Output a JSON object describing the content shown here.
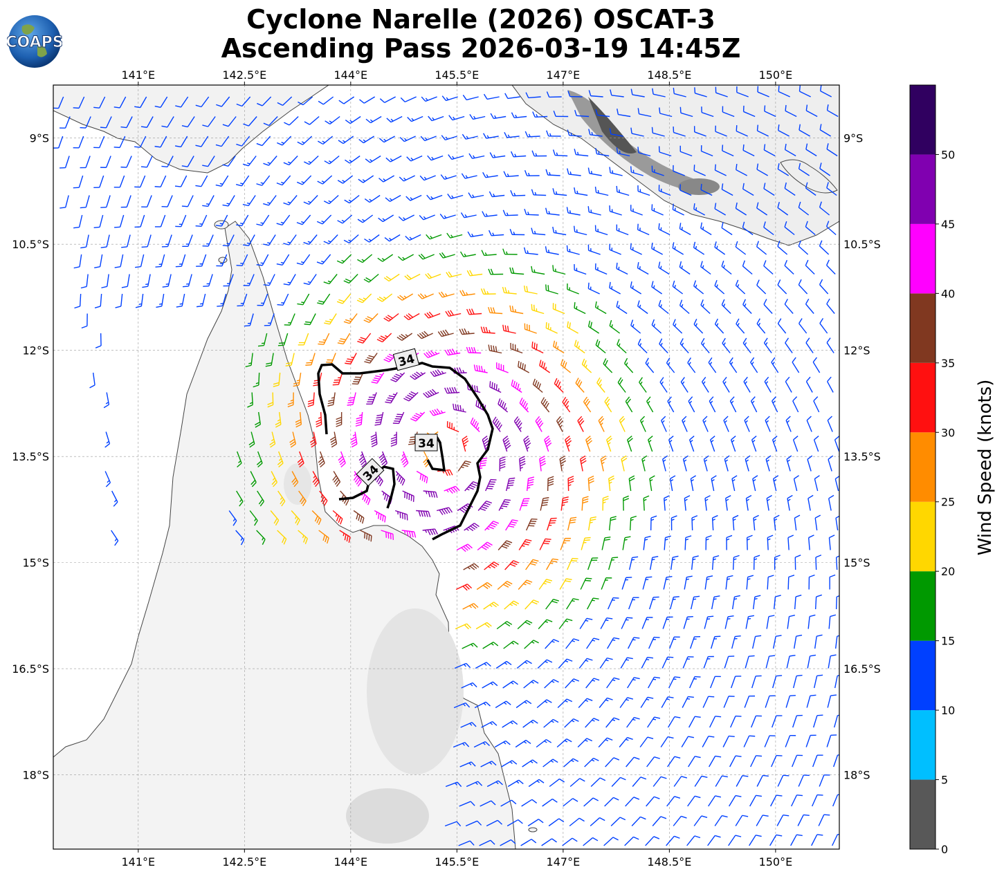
{
  "title_line1": "Cyclone Narelle (2026) OSCAT-3",
  "title_line2": "Ascending Pass 2026-03-19 14:45Z",
  "logo_text": "COAPS",
  "map": {
    "lon_range": [
      139.8,
      150.9
    ],
    "lat_range": [
      -19.05,
      -8.25
    ],
    "lon_ticks": [
      141,
      142.5,
      144,
      145.5,
      147,
      148.5,
      150
    ],
    "lon_tick_labels": [
      "141°E",
      "142.5°E",
      "144°E",
      "145.5°E",
      "147°E",
      "148.5°E",
      "150°E"
    ],
    "lat_ticks": [
      -9,
      -10.5,
      -12,
      -13.5,
      -15,
      -16.5,
      -18
    ],
    "lat_tick_labels": [
      "9°S",
      "10.5°S",
      "12°S",
      "13.5°S",
      "15°S",
      "16.5°S",
      "18°S"
    ],
    "center": {
      "lon": 145.3,
      "lat": -13.4
    },
    "contour_label": "34",
    "contour_labels": [
      "34",
      "34",
      "34"
    ]
  },
  "colorbar": {
    "label": "Wind Speed (knots)",
    "ticks": [
      "0",
      "5",
      "10",
      "15",
      "20",
      "25",
      "30",
      "35",
      "40",
      "45",
      "50"
    ],
    "colors": [
      "#585858",
      "#00bfff",
      "#0040ff",
      "#009900",
      "#ffd700",
      "#ff8c00",
      "#ff1010",
      "#803820",
      "#ff00ff",
      "#8000b0",
      "#300060"
    ],
    "max": 55
  }
}
